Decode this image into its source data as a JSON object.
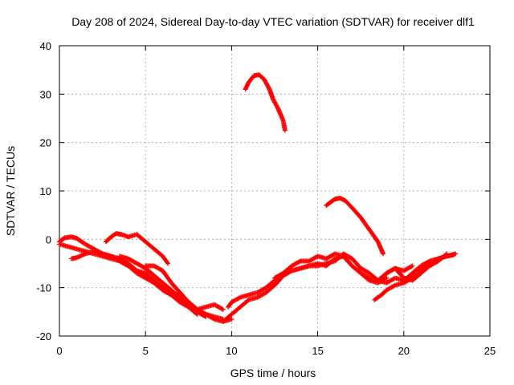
{
  "chart_data": {
    "type": "scatter",
    "title": "Day 208 of 2024, Sidereal Day-to-day VTEC variation (SDTVAR) for receiver dlf1",
    "xlabel": "GPS time / hours",
    "ylabel": "SDTVAR / TECUs",
    "xlim": [
      0,
      25
    ],
    "ylim": [
      -20,
      40
    ],
    "xticks": [
      0,
      5,
      10,
      15,
      20,
      25
    ],
    "yticks": [
      -20,
      -10,
      0,
      10,
      20,
      30,
      40
    ],
    "xtick_labels": [
      "0",
      "5",
      "10",
      "15",
      "20",
      "25"
    ],
    "ytick_labels": [
      "-20",
      "-10",
      "0",
      "10",
      "20",
      "30",
      "40"
    ],
    "grid": true,
    "legend": "none",
    "marker": "plus",
    "color": "#ff0000",
    "series": [
      {
        "name": "arc-1",
        "x": [
          0.0,
          0.3,
          0.7,
          1.0,
          1.5,
          2.0,
          2.5,
          3.0,
          3.5,
          4.0,
          4.5,
          5.0,
          5.5,
          6.0,
          6.5,
          7.0,
          7.5,
          8.0,
          8.5,
          9.0,
          9.5,
          10.0
        ],
        "y": [
          -0.5,
          0.3,
          0.5,
          0.2,
          -1.0,
          -2.0,
          -3.0,
          -3.5,
          -4.0,
          -5.0,
          -6.5,
          -7.0,
          -8.5,
          -10.0,
          -11.0,
          -11.5,
          -13.0,
          -14.5,
          -15.5,
          -16.5,
          -17.0,
          -16.5
        ]
      },
      {
        "name": "arc-2",
        "x": [
          0.0,
          0.5,
          1.0,
          1.5,
          2.0,
          2.5,
          3.0,
          3.5,
          4.0,
          4.5,
          5.0,
          5.5,
          6.0,
          6.5,
          7.0,
          7.5,
          8.0,
          8.5
        ],
        "y": [
          -1.0,
          -1.5,
          -2.0,
          -2.5,
          -3.0,
          -3.5,
          -4.0,
          -4.5,
          -5.5,
          -6.5,
          -7.5,
          -9.0,
          -10.5,
          -11.5,
          -12.5,
          -13.5,
          -15.0,
          -16.0
        ]
      },
      {
        "name": "arc-3",
        "x": [
          0.7,
          1.0,
          1.5,
          2.0,
          2.5,
          3.0,
          3.5,
          4.0,
          4.5,
          5.0,
          5.5,
          6.0,
          6.5,
          7.0,
          7.5,
          8.0
        ],
        "y": [
          -4.0,
          -3.8,
          -3.0,
          -2.5,
          -3.0,
          -3.5,
          -4.5,
          -5.5,
          -7.0,
          -8.0,
          -9.0,
          -10.5,
          -11.5,
          -13.0,
          -14.0,
          -15.5
        ]
      },
      {
        "name": "arc-4",
        "x": [
          2.7,
          3.0,
          3.3,
          3.6,
          4.0,
          4.5,
          5.0,
          5.5,
          6.0,
          6.3
        ],
        "y": [
          -0.5,
          0.5,
          1.2,
          1.0,
          0.5,
          1.0,
          -0.5,
          -2.0,
          -3.5,
          -5.0
        ]
      },
      {
        "name": "arc-5",
        "x": [
          3.5,
          4.0,
          4.5,
          5.0,
          5.5,
          6.0,
          6.5,
          7.0,
          7.5,
          8.0,
          8.5,
          9.0,
          9.5
        ],
        "y": [
          -3.5,
          -4.0,
          -5.0,
          -6.0,
          -7.5,
          -9.0,
          -10.5,
          -12.0,
          -13.0,
          -14.5,
          -15.5,
          -16.0,
          -16.5
        ]
      },
      {
        "name": "arc-6",
        "x": [
          5.0,
          5.5,
          6.0,
          6.5,
          7.0,
          7.5,
          8.0,
          8.5,
          9.0,
          9.5
        ],
        "y": [
          -5.5,
          -5.5,
          -6.5,
          -9.0,
          -11.0,
          -13.0,
          -14.5,
          -14.0,
          -13.5,
          -14.5
        ]
      },
      {
        "name": "arc-7",
        "x": [
          9.5,
          10.0,
          10.5,
          11.0,
          11.5,
          12.0,
          12.5,
          13.0,
          13.5,
          14.0,
          14.5,
          15.0,
          15.5,
          16.0,
          16.5,
          17.0,
          17.5,
          18.0,
          18.5,
          19.0
        ],
        "y": [
          -17.0,
          -15.5,
          -14.0,
          -12.5,
          -12.0,
          -11.0,
          -9.5,
          -7.5,
          -6.5,
          -6.0,
          -5.5,
          -5.0,
          -5.5,
          -4.0,
          -3.5,
          -5.5,
          -7.0,
          -8.5,
          -9.0,
          -8.0
        ]
      },
      {
        "name": "arc-8",
        "x": [
          9.8,
          10.0,
          10.5,
          11.0,
          11.5,
          12.0,
          12.5,
          13.0,
          13.5,
          14.0,
          14.5,
          15.0,
          15.5,
          16.0,
          16.5,
          17.0,
          17.5,
          18.0,
          18.5,
          19.0,
          19.5,
          20.0,
          20.5
        ],
        "y": [
          -14.0,
          -13.0,
          -12.0,
          -11.5,
          -11.0,
          -10.0,
          -8.5,
          -7.0,
          -5.5,
          -4.5,
          -4.5,
          -3.5,
          -4.0,
          -3.0,
          -3.5,
          -5.5,
          -7.0,
          -8.0,
          -8.5,
          -7.0,
          -6.0,
          -6.5,
          -5.5
        ]
      },
      {
        "name": "arc-9",
        "x": [
          12.5,
          13.0,
          13.5,
          14.0,
          14.5,
          15.0,
          15.5,
          16.0,
          16.5,
          17.0,
          17.5,
          18.0,
          18.5,
          19.0,
          19.5,
          20.0,
          20.5,
          21.0,
          21.5,
          22.0,
          22.5,
          23.0
        ],
        "y": [
          -8.0,
          -7.0,
          -6.5,
          -6.0,
          -5.5,
          -5.5,
          -5.0,
          -4.5,
          -3.0,
          -4.0,
          -6.0,
          -7.0,
          -8.5,
          -9.0,
          -8.0,
          -8.5,
          -7.0,
          -5.5,
          -4.5,
          -4.0,
          -3.5,
          -3.0
        ]
      },
      {
        "name": "arc-10",
        "x": [
          18.3,
          18.7,
          19.0,
          19.5,
          20.0,
          20.5,
          21.0,
          21.5,
          22.0,
          22.5,
          22.9
        ],
        "y": [
          -12.5,
          -11.5,
          -10.5,
          -9.5,
          -9.0,
          -8.0,
          -6.5,
          -5.0,
          -4.0,
          -3.5,
          -3.2
        ]
      },
      {
        "name": "arc-11",
        "x": [
          19.0,
          19.5,
          20.0,
          20.5,
          21.0,
          21.5,
          22.0,
          22.5
        ],
        "y": [
          -7.0,
          -6.0,
          -8.0,
          -8.5,
          -7.0,
          -5.5,
          -4.5,
          -3.0
        ]
      },
      {
        "name": "arc-12",
        "x": [
          10.8,
          11.0,
          11.3,
          11.6,
          11.9,
          12.2,
          12.4,
          12.7,
          13.0,
          13.1
        ],
        "y": [
          31.0,
          32.5,
          33.8,
          34.0,
          33.0,
          31.0,
          29.0,
          27.0,
          24.5,
          22.5
        ]
      },
      {
        "name": "arc-13",
        "x": [
          15.5,
          15.8,
          16.0,
          16.3,
          16.6,
          17.0,
          17.5,
          18.0,
          18.5,
          18.8
        ],
        "y": [
          7.0,
          7.8,
          8.3,
          8.5,
          8.0,
          6.5,
          4.5,
          2.0,
          -0.5,
          -3.0
        ]
      }
    ]
  }
}
